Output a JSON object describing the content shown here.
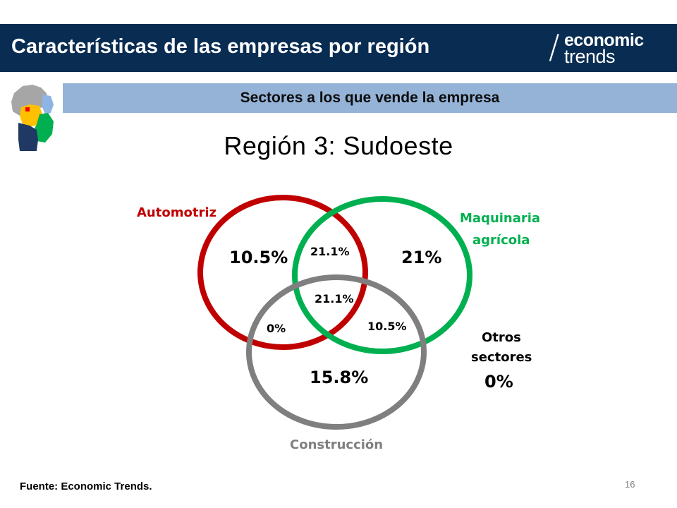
{
  "header": {
    "title": "Características de las empresas por región",
    "logo_top": "economic",
    "logo_bottom": "trends"
  },
  "subbanner": {
    "text": "Sectores a los que vende la empresa"
  },
  "region_title": "Región 3: Sudoeste",
  "venn": {
    "sets": [
      {
        "name": "Automotriz",
        "color": "#c00000"
      },
      {
        "name_line1": "Maquinaria",
        "name_line2": "agrícola",
        "color": "#00b050"
      },
      {
        "name": "Construcción",
        "color": "#7f7f7f"
      }
    ],
    "regions": {
      "auto_only": "10.5%",
      "maq_only": "21%",
      "auto_maq": "21.1%",
      "all_three": "21.1%",
      "auto_const": "0%",
      "maq_const": "10.5%",
      "const_only": "15.8%"
    },
    "outside": {
      "line1": "Otros",
      "line2": "sectores",
      "value": "0%"
    }
  },
  "footer": {
    "source": "Fuente: Economic Trends.",
    "page": "16"
  },
  "colors": {
    "header_bg": "#082c52",
    "subbanner_bg": "#95b3d7",
    "map_gray": "#a6a6a6",
    "map_blue": "#8db4e2",
    "map_yellow": "#ffc000",
    "map_green": "#00b050",
    "map_navy": "#1f3864",
    "map_red": "#ff0000"
  },
  "icons": {
    "map": "argentina-province-map-icon"
  }
}
